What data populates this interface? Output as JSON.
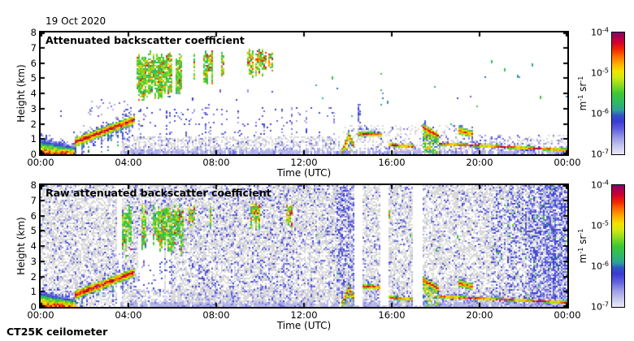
{
  "figure": {
    "date": "19 Oct 2020",
    "instrument": "CT25K ceilometer",
    "background": "#ffffff",
    "text_color": "#000000"
  },
  "chart_data": {
    "type": "heatmap",
    "x_axis": {
      "label": "Time (UTC)",
      "tick_labels": [
        "00:00",
        "04:00",
        "08:00",
        "12:00",
        "16:00",
        "20:00",
        "00:00"
      ],
      "tick_hours": [
        0,
        4,
        8,
        12,
        16,
        20,
        24
      ],
      "range_hours": [
        0,
        24
      ]
    },
    "y_axis": {
      "label": "Height (km)",
      "tick_labels": [
        "8",
        "7",
        "6",
        "5",
        "4",
        "3",
        "2",
        "1",
        "0"
      ],
      "tick_km": [
        8,
        7,
        6,
        5,
        4,
        3,
        2,
        1,
        0
      ],
      "range_km": [
        0,
        8
      ]
    },
    "colorbar": {
      "scale": "log10",
      "tick_base": "10",
      "tick_exponents": [
        "-4",
        "-5",
        "-6",
        "-7"
      ],
      "unit_parts": [
        [
          "m",
          false
        ],
        [
          "-1",
          true
        ],
        [
          " sr",
          false
        ],
        [
          "-1",
          true
        ]
      ],
      "gray": "#d9d9d9",
      "stops": [
        {
          "p": 0.0,
          "c": "#eaeaf6"
        },
        {
          "p": 0.06,
          "c": "#c9c9ef"
        },
        {
          "p": 0.13,
          "c": "#9e9ee8"
        },
        {
          "p": 0.2,
          "c": "#6464de"
        },
        {
          "p": 0.27,
          "c": "#3a3ad2"
        },
        {
          "p": 0.32,
          "c": "#2f55c4"
        },
        {
          "p": 0.36,
          "c": "#2f9d9d"
        },
        {
          "p": 0.42,
          "c": "#2eb868"
        },
        {
          "p": 0.5,
          "c": "#3ec832"
        },
        {
          "p": 0.57,
          "c": "#8fdc20"
        },
        {
          "p": 0.63,
          "c": "#d2e812"
        },
        {
          "p": 0.68,
          "c": "#f2e400"
        },
        {
          "p": 0.74,
          "c": "#ffb000"
        },
        {
          "p": 0.8,
          "c": "#ff7000"
        },
        {
          "p": 0.86,
          "c": "#f02800"
        },
        {
          "p": 0.92,
          "c": "#cf0030"
        },
        {
          "p": 0.97,
          "c": "#a3004f"
        },
        {
          "p": 1.0,
          "c": "#7a0b6b"
        }
      ]
    },
    "shared_features": [
      {
        "kind": "surface",
        "t": [
          0,
          1.62
        ],
        "top": [
          1.1,
          0.5
        ],
        "vmax": 0.84,
        "fr": 0.45
      },
      {
        "kind": "plume",
        "t": [
          1.55,
          4.3
        ],
        "c": [
          0.8,
          2.3
        ],
        "hw": [
          0.3,
          0.28
        ],
        "vmax": 0.96,
        "fr": 0.45,
        "virga": 0.3
      },
      {
        "kind": "speckle",
        "t": [
          2.0,
          4.3
        ],
        "h": [
          2.5,
          3.6
        ],
        "p": 0.1,
        "v": [
          0.08,
          0.28
        ]
      },
      {
        "kind": "columns",
        "t": [
          3.25,
          4.3
        ],
        "h": [
          3.2,
          6.7
        ],
        "density": 0.3,
        "hot": 0.12,
        "run": 2
      },
      {
        "kind": "columns",
        "t": [
          4.3,
          6.5
        ],
        "h": [
          3.4,
          6.75
        ],
        "density": 0.6,
        "hot": 0.2,
        "run": 4
      },
      {
        "kind": "columns",
        "t": [
          6.6,
          8.4
        ],
        "h": [
          4.6,
          6.8
        ],
        "density": 0.42,
        "hot": 0.3,
        "run": 3
      },
      {
        "kind": "columns",
        "t": [
          8.4,
          11.85
        ],
        "h": [
          5.1,
          6.85
        ],
        "density": 0.48,
        "hot": 0.45,
        "run": 3
      },
      {
        "kind": "columns",
        "t": [
          15.68,
          15.95
        ],
        "h": [
          5.5,
          6.5
        ],
        "density": 0.95,
        "hot": 0.45,
        "run": 3
      },
      {
        "kind": "speckle",
        "t": [
          3.6,
          13.55
        ],
        "h": [
          0.35,
          3.0
        ],
        "p": 0.085,
        "v": [
          0.1,
          0.3
        ],
        "streaky": 1
      },
      {
        "kind": "speckle",
        "t": [
          3.7,
          13.6
        ],
        "h": [
          0,
          1.15
        ],
        "p": 0.45,
        "gray": 0.8,
        "v": [
          0.06,
          0.2
        ]
      },
      {
        "kind": "speckle",
        "t": [
          13.8,
          19.3
        ],
        "h": [
          0,
          1.9
        ],
        "p": 0.22,
        "gray": 0.65,
        "v": [
          0.08,
          0.24
        ]
      },
      {
        "kind": "speckle",
        "t": [
          19.3,
          24
        ],
        "h": [
          0.35,
          1.25
        ],
        "p": 0.3,
        "gray": 0.55,
        "v": [
          0.08,
          0.24
        ]
      },
      {
        "kind": "band",
        "t": [
          3.6,
          24
        ],
        "h": [
          0,
          0.3
        ],
        "p": 0.85,
        "v": 0.07
      },
      {
        "kind": "plume",
        "t": [
          13.72,
          14.0
        ],
        "c": [
          0.2,
          1.2
        ],
        "hw": [
          0.18,
          0.25
        ],
        "vmax": 0.9,
        "curtain": 0.5,
        "fr": 0.3
      },
      {
        "kind": "plume",
        "t": [
          14.0,
          14.3
        ],
        "c": [
          1.2,
          0.45
        ],
        "hw": [
          0.25,
          0.16
        ],
        "vmax": 0.9,
        "curtain": 0.45,
        "fr": 0.3
      },
      {
        "kind": "plume",
        "t": [
          14.45,
          15.55
        ],
        "c": [
          1.35,
          1.28
        ],
        "hw": [
          0.14,
          0.13
        ],
        "vmax": 0.9,
        "fr": 0.5,
        "grayfr": 0.6
      },
      {
        "kind": "speckle",
        "t": [
          14.45,
          14.62
        ],
        "h": [
          1.5,
          3.4
        ],
        "p": 0.5,
        "v": [
          0.12,
          0.3
        ]
      },
      {
        "kind": "plume",
        "t": [
          15.85,
          17.05
        ],
        "c": [
          0.62,
          0.48
        ],
        "hw": [
          0.12,
          0.11
        ],
        "vmax": 0.9,
        "fr": 0.35,
        "grayfr": 0.5
      },
      {
        "kind": "plume",
        "t": [
          17.38,
          18.15
        ],
        "c": [
          1.75,
          1.15
        ],
        "hw": [
          0.24,
          0.18
        ],
        "vmax": 0.95,
        "curtain": 0.9,
        "fr": 0.35
      },
      {
        "kind": "plume",
        "t": [
          18.15,
          24
        ],
        "c": [
          0.68,
          0.28
        ],
        "hw": [
          0.1,
          0.09
        ],
        "vmax": 0.94,
        "fr": 0.3,
        "grayfr": 0.4
      },
      {
        "kind": "plume",
        "t": [
          19.0,
          19.68
        ],
        "c": [
          1.55,
          1.3
        ],
        "hw": [
          0.25,
          0.2
        ],
        "vmax": 0.86,
        "fr": 0.4
      },
      {
        "kind": "dots",
        "t": [
          12.3,
          24
        ],
        "h": [
          1.4,
          6.4
        ],
        "n": 26,
        "v": [
          0.12,
          0.5
        ]
      },
      {
        "kind": "dots",
        "t": [
          4,
          12.3
        ],
        "h": [
          2.6,
          4.5
        ],
        "n": 9,
        "v": [
          0.1,
          0.35
        ]
      },
      {
        "kind": "dots",
        "t": [
          0.3,
          3.4
        ],
        "h": [
          1.3,
          3.2
        ],
        "n": 6,
        "v": [
          0.1,
          0.3
        ]
      }
    ],
    "panels": [
      {
        "title": "Attenuated backscatter coefficient",
        "xlabel": "Time (UTC)",
        "ylabel": "Height (km)",
        "seed": 5
      },
      {
        "title": "Raw attenuated backscatter coefficient",
        "xlabel": "Time (UTC)",
        "ylabel": "Height (km)",
        "seed": 9,
        "noise": {
          "grayP": 0.5,
          "blueP": 0.09,
          "altGain": 0.06,
          "boost": {
            "t": [
              4,
              13.5
            ],
            "hMin": 3.5,
            "p": 0.06
          },
          "v": [
            0.08,
            0.26
          ]
        },
        "bands": [
          {
            "t": [
              13.45,
              14.28
            ],
            "p": 0.38,
            "v": [
              0.1,
              0.3
            ]
          }
        ],
        "stripes": {
          "t": [
            20.55,
            24
          ]
        },
        "gapsNoise": [
          {
            "t": [
              3.45,
              3.72
            ],
            "h": [
              0,
              8
            ]
          },
          {
            "t": [
              4.45,
              5.6
            ],
            "h": [
              0,
              4.6
            ]
          },
          {
            "t": [
              5.68,
              5.95
            ],
            "h": [
              0,
              4.2
            ]
          }
        ],
        "gapsFull": [
          [
            14.3,
            14.64
          ],
          [
            15.5,
            15.84
          ],
          [
            16.98,
            17.44
          ]
        ]
      }
    ]
  }
}
